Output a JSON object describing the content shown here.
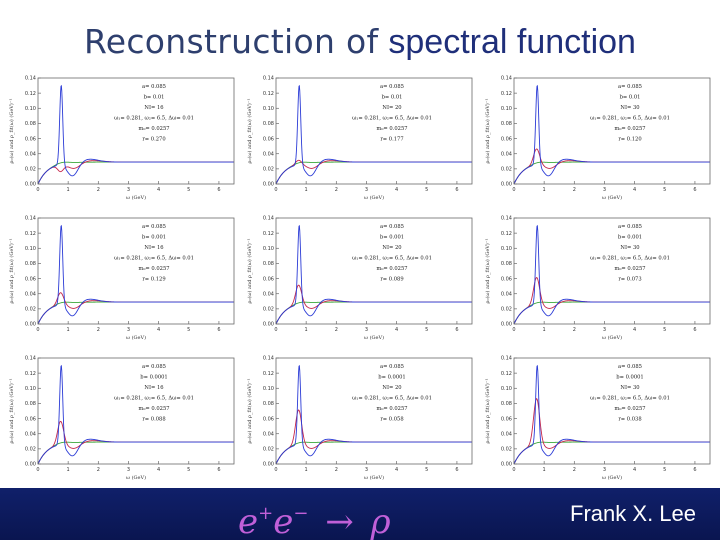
{
  "slide": {
    "title_part1": "Reconstruction of",
    "title_part2": "spectral function",
    "formula_e1": "e",
    "formula_plus": "+",
    "formula_e2": "e",
    "formula_minus": "−",
    "formula_arrow": "→",
    "formula_rho": "ρ",
    "author": "Frank X. Lee"
  },
  "colors": {
    "title_text": "#2e3f6e",
    "footer_bg": "#10206a",
    "formula": "#c060d8",
    "curve_blue": "#2b3bd6",
    "curve_red": "#c6264a",
    "curve_green": "#3aa83a"
  },
  "chart_data": {
    "type": "line",
    "panels": [
      {
        "a": "a= 0.085",
        "b": "b= 0.01",
        "n": "NI= 16",
        "omega": "ω₁= 0.281, ω₂= 6.5, Δω= 0.01",
        "m": "m₀= 0.0257",
        "r": "r= 0.270",
        "peak_blue": 0.135,
        "peak_red": 0.02
      },
      {
        "a": "a= 0.085",
        "b": "b= 0.01",
        "n": "NI= 20",
        "omega": "ω₁= 0.281, ω₂= 6.5, Δω= 0.01",
        "m": "m₀= 0.0257",
        "r": "r= 0.177",
        "peak_blue": 0.135,
        "peak_red": 0.035
      },
      {
        "a": "a= 0.085",
        "b": "b= 0.01",
        "n": "NI= 30",
        "omega": "ω₁= 0.281, ω₂= 6.5, Δω= 0.01",
        "m": "m₀= 0.0257",
        "r": "r= 0.120",
        "peak_blue": 0.135,
        "peak_red": 0.05
      },
      {
        "a": "a= 0.085",
        "b": "b= 0.001",
        "n": "NI= 16",
        "omega": "ω₁= 0.281, ω₂= 6.5, Δω= 0.01",
        "m": "m₀= 0.0257",
        "r": "r= 0.129",
        "peak_blue": 0.135,
        "peak_red": 0.045
      },
      {
        "a": "a= 0.085",
        "b": "b= 0.001",
        "n": "NI= 20",
        "omega": "ω₁= 0.281, ω₂= 6.5, Δω= 0.01",
        "m": "m₀= 0.0257",
        "r": "r= 0.089",
        "peak_blue": 0.135,
        "peak_red": 0.055
      },
      {
        "a": "a= 0.085",
        "b": "b= 0.001",
        "n": "NI= 30",
        "omega": "ω₁= 0.281, ω₂= 6.5, Δω= 0.01",
        "m": "m₀= 0.0257",
        "r": "r= 0.073",
        "peak_blue": 0.135,
        "peak_red": 0.065
      },
      {
        "a": "a= 0.085",
        "b": "b= 0.0001",
        "n": "NI= 16",
        "omega": "ω₁= 0.281, ω₂= 6.5, Δω= 0.01",
        "m": "m₀= 0.0257",
        "r": "r= 0.088",
        "peak_blue": 0.135,
        "peak_red": 0.06
      },
      {
        "a": "a= 0.085",
        "b": "b= 0.0001",
        "n": "NI= 20",
        "omega": "ω₁= 0.281, ω₂= 6.5, Δω= 0.01",
        "m": "m₀= 0.0257",
        "r": "r= 0.058",
        "peak_blue": 0.135,
        "peak_red": 0.075
      },
      {
        "a": "a= 0.085",
        "b": "b= 0.0001",
        "n": "NI= 30",
        "omega": "ω₁= 0.281, ω₂= 6.5, Δω= 0.01",
        "m": "m₀= 0.0257",
        "r": "r= 0.038",
        "peak_blue": 0.135,
        "peak_red": 0.09
      }
    ],
    "xlabel": "ω (GeV)",
    "ylabel": "ρ₀(ω) and ρ_fit(ω) (GeV)⁻¹",
    "xlim": [
      0,
      6.5
    ],
    "ylim": [
      0,
      0.14
    ],
    "xticks": [
      "0",
      "1",
      "2",
      "3",
      "4",
      "5",
      "6"
    ],
    "yticks": [
      "0.00",
      "0.02",
      "0.04",
      "0.06",
      "0.08",
      "0.10",
      "0.12",
      "0.14"
    ],
    "grid": false
  }
}
